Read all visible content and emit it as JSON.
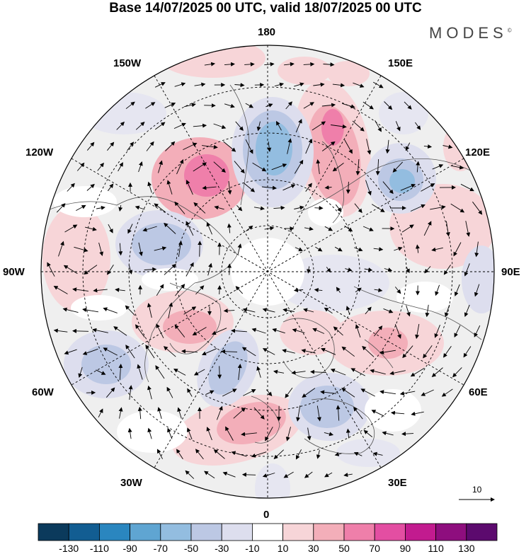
{
  "title": "Base 14/07/2025 00 UTC, valid 18/07/2025 00 UTC",
  "brand": "MODES",
  "brand_mark": "©",
  "longitude_labels": {
    "deg180": "180",
    "deg150e": "150E",
    "deg120e": "120E",
    "deg90e": "90E",
    "deg60e": "60E",
    "deg30e": "30E",
    "deg0": "0",
    "deg30w": "30W",
    "deg60w": "60W",
    "deg90w": "90W",
    "deg120w": "120W",
    "deg150w": "150W"
  },
  "vector_scale_label": "10",
  "colorbar": {
    "colors": [
      "#0b3a5c",
      "#125d92",
      "#2a86bf",
      "#5fa5d2",
      "#93bde0",
      "#bcc8e4",
      "#dddeee",
      "#ffffff",
      "#f7d5d8",
      "#f3aeb9",
      "#ef7faa",
      "#e34ea2",
      "#c21b8f",
      "#8e0e7e",
      "#5c0a6e"
    ],
    "labels": [
      "-130",
      "-110",
      "-90",
      "-70",
      "-50",
      "-30",
      "-10",
      "10",
      "30",
      "50",
      "70",
      "90",
      "110",
      "130"
    ]
  }
}
